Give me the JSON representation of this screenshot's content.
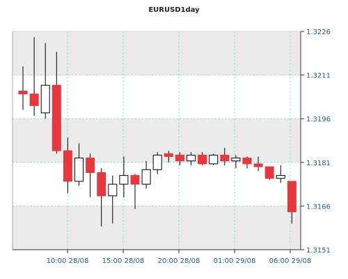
{
  "chart_data": {
    "type": "candlestick",
    "title": "EURUSD1day",
    "ylim": [
      1.3151,
      1.3226
    ],
    "y_ticks": [
      "1.3226",
      "1.3211",
      "1.3196",
      "1.3181",
      "1.3166",
      "1.3151"
    ],
    "x_ticks": [
      "10:00 28/08",
      "15:00 28/08",
      "20:00 28/08",
      "01:00 29/08",
      "06:00 29/08"
    ],
    "grid": true,
    "colors": {
      "up_fill": "#ffffff",
      "down_fill": "#e8383d",
      "outline": "#000000",
      "grid": "#8fd3d6",
      "band": "#ebebeb",
      "axis": "#333333",
      "label": "#1d5b93"
    },
    "candles": [
      {
        "open": 1.32055,
        "close": 1.32045,
        "high": 1.3214,
        "low": 1.3199
      },
      {
        "open": 1.32045,
        "close": 1.32005,
        "high": 1.3224,
        "low": 1.3197
      },
      {
        "open": 1.3198,
        "close": 1.32075,
        "high": 1.3222,
        "low": 1.3196
      },
      {
        "open": 1.32075,
        "close": 1.3185,
        "high": 1.3219,
        "low": 1.3184
      },
      {
        "open": 1.3185,
        "close": 1.31745,
        "high": 1.31895,
        "low": 1.31705
      },
      {
        "open": 1.31745,
        "close": 1.31825,
        "high": 1.31875,
        "low": 1.3173
      },
      {
        "open": 1.31825,
        "close": 1.31775,
        "high": 1.3184,
        "low": 1.3169
      },
      {
        "open": 1.31775,
        "close": 1.31695,
        "high": 1.3179,
        "low": 1.3159
      },
      {
        "open": 1.31695,
        "close": 1.31735,
        "high": 1.31765,
        "low": 1.316
      },
      {
        "open": 1.31735,
        "close": 1.31765,
        "high": 1.3183,
        "low": 1.3169
      },
      {
        "open": 1.31765,
        "close": 1.31735,
        "high": 1.3177,
        "low": 1.3165
      },
      {
        "open": 1.31735,
        "close": 1.31785,
        "high": 1.31815,
        "low": 1.3172
      },
      {
        "open": 1.31785,
        "close": 1.31835,
        "high": 1.31845,
        "low": 1.3177
      },
      {
        "open": 1.3184,
        "close": 1.3183,
        "high": 1.3185,
        "low": 1.3181
      },
      {
        "open": 1.31835,
        "close": 1.31815,
        "high": 1.31845,
        "low": 1.318
      },
      {
        "open": 1.31815,
        "close": 1.31835,
        "high": 1.31845,
        "low": 1.318
      },
      {
        "open": 1.31835,
        "close": 1.31805,
        "high": 1.31845,
        "low": 1.318
      },
      {
        "open": 1.31805,
        "close": 1.31835,
        "high": 1.3184,
        "low": 1.318
      },
      {
        "open": 1.31835,
        "close": 1.31815,
        "high": 1.3186,
        "low": 1.318
      },
      {
        "open": 1.31815,
        "close": 1.31825,
        "high": 1.31835,
        "low": 1.3179
      },
      {
        "open": 1.31825,
        "close": 1.31805,
        "high": 1.3183,
        "low": 1.3179
      },
      {
        "open": 1.31805,
        "close": 1.31795,
        "high": 1.3183,
        "low": 1.3178
      },
      {
        "open": 1.31795,
        "close": 1.31755,
        "high": 1.31795,
        "low": 1.3175
      },
      {
        "open": 1.31755,
        "close": 1.31765,
        "high": 1.318,
        "low": 1.3174
      },
      {
        "open": 1.31745,
        "close": 1.3164,
        "high": 1.31745,
        "low": 1.316
      }
    ]
  }
}
